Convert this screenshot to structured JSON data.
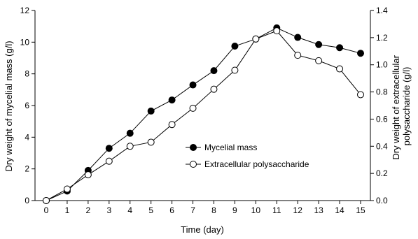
{
  "chart_data": {
    "type": "line",
    "title": "",
    "xlabel": "Time (day)",
    "ylabel": "Dry weight of mycelial mass (g/l)",
    "y2label": "Dry weight of extracellular polysaccharide (g/l)",
    "x": [
      0,
      1,
      2,
      3,
      4,
      5,
      6,
      7,
      8,
      9,
      10,
      11,
      12,
      13,
      14,
      15
    ],
    "xlim": [
      0,
      15
    ],
    "ylim": [
      0,
      12
    ],
    "y2lim": [
      0,
      1.4
    ],
    "xticks": [
      0,
      1,
      2,
      3,
      4,
      5,
      6,
      7,
      8,
      9,
      10,
      11,
      12,
      13,
      14,
      15
    ],
    "yticks": [
      0,
      2,
      4,
      6,
      8,
      10,
      12
    ],
    "y2ticks": [
      "0.0",
      "0.2",
      "0.4",
      "0.6",
      "0.8",
      "1.0",
      "1.2",
      "1.4"
    ],
    "grid": false,
    "legend_position": "center-right",
    "series": [
      {
        "name": "Mycelial mass",
        "axis": "left",
        "marker": "filled-circle",
        "color": "#000000",
        "values": [
          0,
          0.6,
          1.9,
          3.3,
          4.25,
          5.65,
          6.35,
          7.3,
          8.2,
          9.75,
          10.2,
          10.9,
          10.3,
          9.85,
          9.65,
          9.3
        ]
      },
      {
        "name": "Extracellular polysaccharide",
        "axis": "right",
        "marker": "open-circle",
        "color": "#000000",
        "values": [
          0,
          0.085,
          0.19,
          0.29,
          0.4,
          0.43,
          0.56,
          0.68,
          0.82,
          0.96,
          1.19,
          1.25,
          1.07,
          1.03,
          0.97,
          0.78
        ]
      }
    ]
  }
}
